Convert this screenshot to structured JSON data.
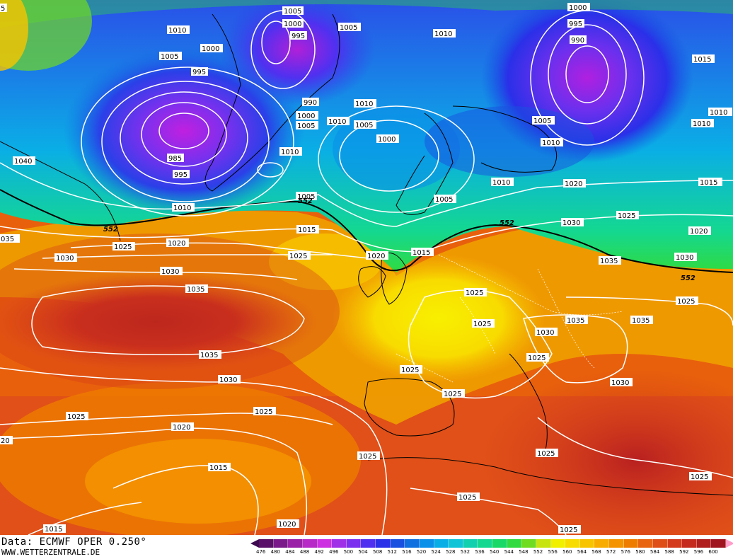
{
  "footer": {
    "data_source": "Data: ECMWF OPER 0.250°",
    "website": "WWW.WETTERZENTRALE.DE"
  },
  "contour_552_label": "552",
  "isobar_labels": {
    "n1005a": "1005",
    "n1000a": "1000",
    "n995a": "995",
    "n1010a": "1010",
    "n1005b": "1005",
    "n1000b": "1000",
    "n995b": "995",
    "n1005c": "1005",
    "n1010b": "1010",
    "n1000c": "1000",
    "n995c": "995",
    "n990a": "990",
    "n1015a": "1015",
    "n990b": "990",
    "n1010c": "1010",
    "n1000d": "1000",
    "n1005d": "1005",
    "n1010d": "1010",
    "n1005e": "1005",
    "n1000e": "1000",
    "n1005f": "1005",
    "n1010e": "1010",
    "n1010f": "1010",
    "n1010g": "1010",
    "n1040": "1040",
    "n985": "985",
    "n995d": "995",
    "n1010h": "1010",
    "n1010i": "1010",
    "n1005g": "1005",
    "n1005h": "1005",
    "n1020a": "1020",
    "n1015b": "1015",
    "n1025a": "1025",
    "n1030a": "1030",
    "n1020b": "1020",
    "n1015c": "1015",
    "n1020c": "1020",
    "n1015d": "1015",
    "n1035a": "1035",
    "n1030b": "1030",
    "n1025b": "1025",
    "n1025c": "1025",
    "n1030c": "1030",
    "n1035b": "1035",
    "n1025d": "1025",
    "n1030d": "1030",
    "n1030e": "1030",
    "n1025e": "1025",
    "n1025f": "1025",
    "n1030f": "1030",
    "n1035c": "1035",
    "n1035d": "1035",
    "n1025g": "1025",
    "n1030g": "1030",
    "n1025h": "1025",
    "n1020d": "1020",
    "n1025i": "1025",
    "n1025j": "1025",
    "n1025k": "1025",
    "n1025l": "1025",
    "n1025m": "1025",
    "n1025n": "1025",
    "n1015e": "1015",
    "n1015f": "1015",
    "n1020e": "1020",
    "n1025o": "1025",
    "n1035e": "1035",
    "n1030h": "1030",
    "n035": "035",
    "n20": "20",
    "n5": "5"
  },
  "legend": {
    "values": [
      "476",
      "480",
      "484",
      "488",
      "492",
      "496",
      "500",
      "504",
      "508",
      "512",
      "516",
      "520",
      "524",
      "528",
      "532",
      "536",
      "540",
      "544",
      "548",
      "552",
      "556",
      "560",
      "564",
      "568",
      "572",
      "576",
      "580",
      "584",
      "588",
      "592",
      "596",
      "600"
    ],
    "colors": [
      "#5a1068",
      "#7a1a8a",
      "#9a20a8",
      "#b82ac8",
      "#cc30e0",
      "#a030e8",
      "#7a30ee",
      "#5030f0",
      "#2a30e8",
      "#1a50e0",
      "#1070e0",
      "#0a90e8",
      "#0aaee6",
      "#10c4d8",
      "#10d0b0",
      "#14d890",
      "#18d868",
      "#30da40",
      "#70dc20",
      "#c8e410",
      "#f0f000",
      "#f8dc00",
      "#f8c400",
      "#f8ac00",
      "#f49400",
      "#ee7c00",
      "#e86410",
      "#e04e18",
      "#d43a1c",
      "#c42a1e",
      "#b01e1e",
      "#a01420"
    ]
  }
}
